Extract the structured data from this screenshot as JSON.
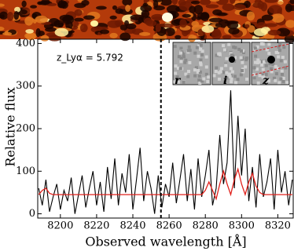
{
  "chart_data": {
    "type": "line",
    "xlabel": "Observed wavelength [Å]",
    "ylabel": "Relative flux",
    "annotation": "z_Lyα = 5.792",
    "inset_labels": [
      "r",
      "i",
      "z"
    ],
    "marker_line_x": 8255.5,
    "x": [
      8188,
      8190,
      8192,
      8194,
      8196,
      8198,
      8200,
      8202,
      8204,
      8206,
      8208,
      8210,
      8212,
      8214,
      8216,
      8218,
      8220,
      8222,
      8224,
      8226,
      8228,
      8230,
      8232,
      8234,
      8236,
      8238,
      8240,
      8242,
      8244,
      8246,
      8248,
      8250,
      8252,
      8254,
      8256,
      8258,
      8260,
      8262,
      8264,
      8266,
      8268,
      8270,
      8272,
      8274,
      8276,
      8278,
      8280,
      8282,
      8284,
      8286,
      8288,
      8290,
      8292,
      8294,
      8296,
      8298,
      8300,
      8302,
      8304,
      8306,
      8308,
      8310,
      8312,
      8314,
      8316,
      8318,
      8320,
      8322,
      8324,
      8326,
      8328
    ],
    "series": [
      {
        "color": "#000000",
        "values": [
          60,
          20,
          80,
          5,
          40,
          70,
          10,
          55,
          30,
          85,
          0,
          45,
          90,
          15,
          60,
          100,
          20,
          75,
          5,
          110,
          35,
          130,
          20,
          95,
          50,
          140,
          10,
          80,
          155,
          30,
          100,
          60,
          0,
          90,
          15,
          70,
          40,
          120,
          25,
          80,
          140,
          30,
          105,
          10,
          130,
          40,
          90,
          150,
          20,
          60,
          185,
          70,
          120,
          290,
          60,
          230,
          90,
          200,
          30,
          110,
          15,
          140,
          40,
          75,
          130,
          10,
          150,
          50,
          100,
          20,
          80
        ]
      },
      {
        "color": "#e0201b",
        "values": [
          45,
          55,
          60,
          48,
          45,
          45,
          45,
          45,
          45,
          45,
          45,
          45,
          45,
          45,
          45,
          45,
          45,
          45,
          45,
          45,
          45,
          45,
          45,
          45,
          45,
          45,
          45,
          45,
          45,
          45,
          45,
          45,
          45,
          45,
          45,
          45,
          45,
          45,
          45,
          45,
          45,
          45,
          45,
          45,
          45,
          45,
          55,
          75,
          55,
          35,
          70,
          100,
          70,
          45,
          80,
          105,
          70,
          45,
          75,
          95,
          65,
          50,
          45,
          45,
          45,
          45,
          45,
          45,
          45,
          45,
          45
        ]
      }
    ],
    "xlim": [
      8187.5,
      8328.5
    ],
    "ylim": [
      -10,
      410
    ],
    "xticks": [
      8200,
      8220,
      8240,
      8260,
      8280,
      8300,
      8320
    ],
    "yticks": [
      0,
      100,
      200,
      300,
      400
    ]
  }
}
